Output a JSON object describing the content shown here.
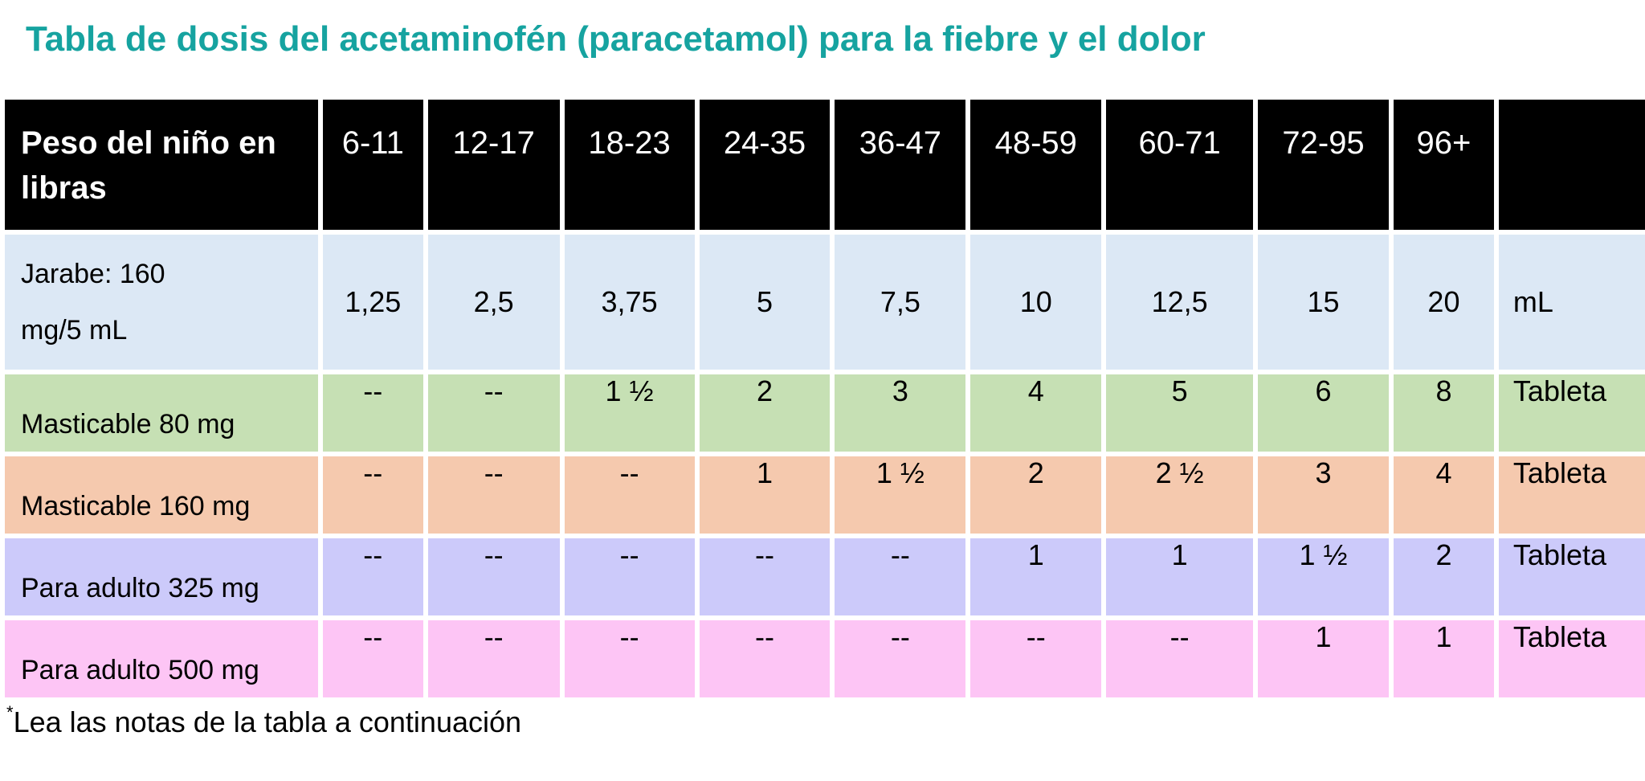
{
  "title": "Tabla de dosis del acetaminofén (paracetamol) para la fiebre y el dolor",
  "table": {
    "header": {
      "label_line1": "Peso del niño en",
      "label_line2": "libras",
      "weights": [
        "6-11",
        "12-17",
        "18-23",
        "24-35",
        "36-47",
        "48-59",
        "60-71",
        "72-95",
        "96+"
      ],
      "unit_header": ""
    },
    "rows": [
      {
        "label_line1": "Jarabe: 160",
        "label_line2": "mg/5 mL",
        "values": [
          "1,25",
          "2,5",
          "3,75",
          "5",
          "7,5",
          "10",
          "12,5",
          "15",
          "20"
        ],
        "unit": "mL",
        "color": "#dce8f5"
      },
      {
        "label": "Masticable 80 mg",
        "values": [
          "--",
          "--",
          "1 ½",
          "2",
          "3",
          "4",
          "5",
          "6",
          "8"
        ],
        "unit": "Tableta",
        "color": "#c6e0b4"
      },
      {
        "label": "Masticable 160 mg",
        "values": [
          "--",
          "--",
          "--",
          "1",
          "1 ½",
          "2",
          "2 ½",
          "3",
          "4"
        ],
        "unit": "Tableta",
        "color": "#f5c9ae"
      },
      {
        "label": "Para adulto 325 mg",
        "values": [
          "--",
          "--",
          "--",
          "--",
          "--",
          "1",
          "1",
          "1 ½",
          "2"
        ],
        "unit": "Tableta",
        "color": "#cccafa"
      },
      {
        "label": "Para adulto 500 mg",
        "values": [
          "--",
          "--",
          "--",
          "--",
          "--",
          "--",
          "--",
          "1",
          "1"
        ],
        "unit": "Tableta",
        "color": "#fdc5f5"
      }
    ]
  },
  "note": {
    "marker": "*",
    "text": "Lea las notas de la tabla a continuación"
  },
  "colors": {
    "title": "#16a3a0",
    "header_bg": "#000000"
  }
}
